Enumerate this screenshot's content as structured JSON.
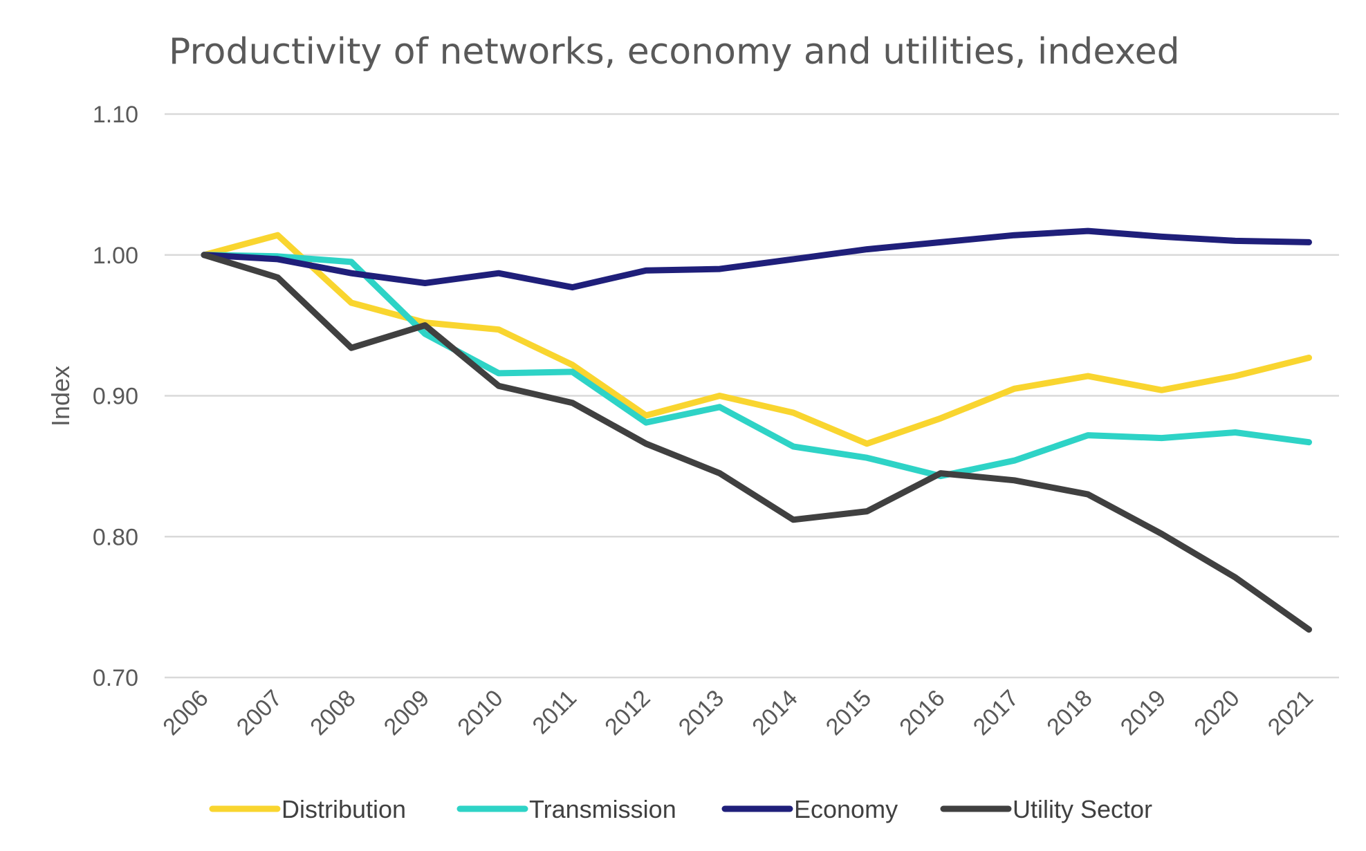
{
  "chart_data": {
    "type": "line",
    "title": "Productivity of networks, economy and utilities, indexed",
    "xlabel": "",
    "ylabel": "Index",
    "ylim": [
      0.7,
      1.1
    ],
    "yticks": [
      "0.70",
      "0.80",
      "0.90",
      "1.00",
      "1.10"
    ],
    "categories": [
      "2006",
      "2007",
      "2008",
      "2009",
      "2010",
      "2011",
      "2012",
      "2013",
      "2014",
      "2015",
      "2016",
      "2017",
      "2018",
      "2019",
      "2020",
      "2021"
    ],
    "grid": true,
    "legend_position": "bottom",
    "series": [
      {
        "name": "Distribution",
        "color": "#F9D52F",
        "values": [
          1.0,
          1.014,
          0.966,
          0.952,
          0.947,
          0.922,
          0.886,
          0.9,
          0.888,
          0.866,
          0.884,
          0.905,
          0.914,
          0.904,
          0.914,
          0.927
        ]
      },
      {
        "name": "Transmission",
        "color": "#2ED3C6",
        "values": [
          1.0,
          0.999,
          0.995,
          0.944,
          0.916,
          0.917,
          0.881,
          0.892,
          0.864,
          0.856,
          0.843,
          0.854,
          0.872,
          0.87,
          0.874,
          0.867
        ]
      },
      {
        "name": "Economy",
        "color": "#1F1F7A",
        "values": [
          1.0,
          0.997,
          0.987,
          0.98,
          0.987,
          0.977,
          0.989,
          0.99,
          0.997,
          1.004,
          1.009,
          1.014,
          1.017,
          1.013,
          1.01,
          1.009
        ]
      },
      {
        "name": "Utility Sector",
        "color": "#404040",
        "values": [
          1.0,
          0.984,
          0.934,
          0.95,
          0.907,
          0.895,
          0.866,
          0.845,
          0.812,
          0.818,
          0.845,
          0.84,
          0.83,
          0.802,
          0.771,
          0.734
        ]
      }
    ]
  }
}
